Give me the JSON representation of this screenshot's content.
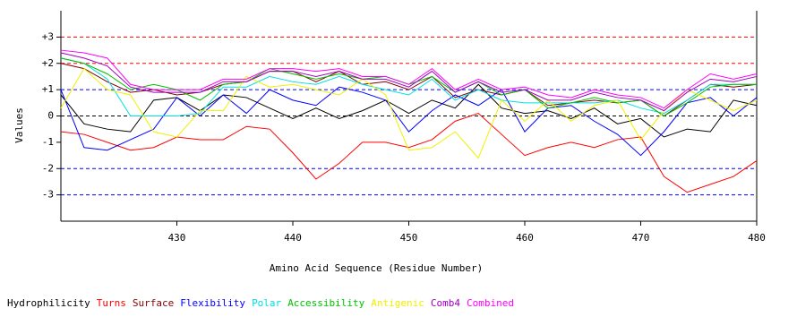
{
  "chart_data": {
    "type": "line",
    "y_label": "Values",
    "x_label": "Amino Acid Sequence (Residue Number)",
    "x": [
      420,
      422,
      424,
      426,
      428,
      430,
      432,
      434,
      436,
      438,
      440,
      442,
      444,
      446,
      448,
      450,
      452,
      454,
      456,
      458,
      460,
      462,
      464,
      466,
      468,
      470,
      472,
      474,
      476,
      478,
      480
    ],
    "xlim": [
      420,
      480
    ],
    "xticks": [
      430,
      440,
      450,
      460,
      470,
      480
    ],
    "ylim": [
      -4,
      4
    ],
    "yticks": [
      {
        "value": 3,
        "label": "+3"
      },
      {
        "value": 2,
        "label": "+2"
      },
      {
        "value": 1,
        "label": "+1"
      },
      0,
      -1,
      -2,
      -3
    ],
    "reference_lines": [
      {
        "y": 3,
        "color": "#ff0000"
      },
      {
        "y": 2,
        "color": "#ff0000"
      },
      {
        "y": 1,
        "color": "#0000ff"
      },
      {
        "y": 0,
        "color": "#000000"
      },
      {
        "y": -2,
        "color": "#0000ff"
      },
      {
        "y": -3,
        "color": "#0000ff"
      }
    ],
    "series": [
      {
        "name": "Hydrophilicity",
        "color": "#000000",
        "values": [
          0.8,
          -0.3,
          -0.5,
          -0.6,
          0.6,
          0.7,
          0.2,
          0.8,
          0.7,
          0.3,
          -0.1,
          0.3,
          -0.1,
          0.2,
          0.6,
          0.1,
          0.6,
          0.3,
          1.2,
          0.3,
          0.1,
          0.2,
          -0.1,
          0.3,
          -0.3,
          -0.1,
          -0.8,
          -0.5,
          -0.6,
          0.6,
          0.4
        ]
      },
      {
        "name": "Turns",
        "color": "#ff0000",
        "values": [
          -0.6,
          -0.7,
          -1.0,
          -1.3,
          -1.2,
          -0.8,
          -0.9,
          -0.9,
          -0.4,
          -0.5,
          -1.4,
          -2.4,
          -1.8,
          -1.0,
          -1.0,
          -1.2,
          -0.9,
          -0.2,
          0.1,
          -0.7,
          -1.5,
          -1.2,
          -1.0,
          -1.2,
          -0.9,
          -0.8,
          -2.3,
          -2.9,
          -2.6,
          -2.3,
          -1.7
        ]
      },
      {
        "name": "Surface",
        "color": "#800000",
        "values": [
          2.0,
          1.8,
          1.3,
          0.9,
          1.0,
          0.8,
          0.9,
          1.2,
          1.3,
          1.7,
          1.7,
          1.3,
          1.7,
          1.2,
          1.3,
          1.0,
          1.5,
          0.7,
          1.0,
          0.8,
          1.0,
          0.4,
          0.5,
          0.6,
          0.5,
          0.6,
          0.0,
          0.6,
          1.2,
          1.1,
          1.2
        ]
      },
      {
        "name": "Flexibility",
        "color": "#0000ff",
        "values": [
          1.0,
          -1.2,
          -1.3,
          -0.9,
          -0.5,
          0.7,
          0.0,
          0.8,
          0.1,
          1.0,
          0.6,
          0.4,
          1.1,
          0.9,
          0.6,
          -0.6,
          0.2,
          0.8,
          0.4,
          1.0,
          -0.6,
          0.3,
          0.4,
          -0.2,
          -0.7,
          -1.5,
          -0.6,
          0.5,
          0.7,
          0.0,
          0.7
        ]
      },
      {
        "name": "Polar",
        "color": "#00e0e0",
        "values": [
          2.2,
          2.0,
          1.4,
          0.0,
          0.0,
          0.0,
          0.1,
          1.1,
          1.1,
          1.5,
          1.3,
          1.2,
          1.5,
          1.2,
          1.0,
          0.8,
          1.4,
          0.6,
          1.0,
          0.6,
          0.5,
          0.5,
          0.5,
          0.5,
          0.6,
          0.3,
          0.1,
          0.6,
          1.2,
          1.2,
          1.2
        ]
      },
      {
        "name": "Accessibility",
        "color": "#00c000",
        "values": [
          2.2,
          2.0,
          1.6,
          1.0,
          1.2,
          1.0,
          0.6,
          1.2,
          1.3,
          1.8,
          1.6,
          1.4,
          1.6,
          1.4,
          1.5,
          1.2,
          1.5,
          0.9,
          1.3,
          0.8,
          1.0,
          0.3,
          0.5,
          0.7,
          0.5,
          0.6,
          0.0,
          0.5,
          1.1,
          1.2,
          1.2
        ]
      },
      {
        "name": "Antigenic",
        "color": "#f0f000",
        "values": [
          0.3,
          1.8,
          1.0,
          0.8,
          -0.6,
          -0.8,
          0.2,
          0.2,
          1.5,
          1.1,
          1.2,
          1.0,
          0.8,
          1.4,
          0.8,
          -1.3,
          -1.2,
          -0.6,
          -1.6,
          0.6,
          -0.2,
          0.6,
          -0.2,
          0.4,
          0.6,
          -0.9,
          0.2,
          1.0,
          0.6,
          0.2,
          0.6
        ]
      },
      {
        "name": "Comb4",
        "color": "#a000c0",
        "values": [
          2.4,
          2.2,
          1.9,
          1.1,
          0.9,
          0.9,
          0.9,
          1.3,
          1.3,
          1.7,
          1.7,
          1.5,
          1.7,
          1.4,
          1.4,
          1.1,
          1.7,
          0.9,
          1.3,
          0.9,
          1.0,
          0.6,
          0.6,
          0.9,
          0.7,
          0.6,
          0.2,
          0.9,
          1.4,
          1.3,
          1.5
        ]
      },
      {
        "name": "Combined",
        "color": "#ff00ff",
        "values": [
          2.5,
          2.4,
          2.2,
          1.2,
          1.0,
          1.0,
          1.0,
          1.4,
          1.4,
          1.8,
          1.8,
          1.7,
          1.8,
          1.5,
          1.5,
          1.2,
          1.8,
          1.0,
          1.4,
          1.0,
          1.1,
          0.8,
          0.7,
          1.0,
          0.8,
          0.7,
          0.3,
          1.0,
          1.6,
          1.4,
          1.6
        ]
      }
    ]
  }
}
